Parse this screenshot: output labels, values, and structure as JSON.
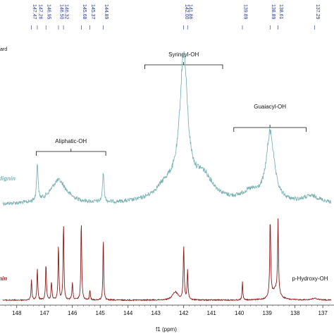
{
  "chart_data": {
    "type": "line",
    "title": "",
    "xlabel": "f1 (ppm)",
    "ylabel": "",
    "xlim": [
      148.5,
      136.7
    ],
    "x_reversed": true,
    "grid": false,
    "x_ticks": [
      148,
      147,
      146,
      145,
      144,
      143,
      142,
      141,
      140,
      139,
      138,
      137
    ],
    "corner_label": "ard",
    "peak_labels": [
      "147.47",
      "147.26",
      "146.95",
      "146.50",
      "146.32",
      "145.68",
      "145.37",
      "144.89",
      "142.00",
      "141.86",
      "139.89",
      "138.89",
      "138.61",
      "137.29"
    ],
    "peak_label_positions": [
      147.47,
      147.26,
      146.95,
      146.5,
      146.32,
      145.68,
      145.37,
      144.89,
      142.0,
      141.86,
      139.89,
      138.89,
      138.61,
      137.29
    ],
    "regions": [
      {
        "label": "Aliphatic-OH",
        "range": [
          147.3,
          144.8
        ]
      },
      {
        "label": "Syringyl-OH",
        "range": [
          143.4,
          140.6
        ]
      },
      {
        "label": "Guaiacyl-OH",
        "range": [
          140.2,
          137.6
        ]
      },
      {
        "label": "p-Hydroxy-OH",
        "range": [
          137.5,
          136.8
        ]
      }
    ],
    "series": [
      {
        "name": "dignin",
        "color": "#7fb3b3",
        "baseline": 0.05,
        "peaks": [
          {
            "x": 147.26,
            "h": 0.28,
            "w": 0.03
          },
          {
            "x": 146.5,
            "h": 0.17,
            "w": 0.35
          },
          {
            "x": 144.89,
            "h": 0.22,
            "w": 0.03
          },
          {
            "x": 142.0,
            "h": 1.0,
            "w": 0.17
          },
          {
            "x": 142.6,
            "h": 0.12,
            "w": 0.5
          },
          {
            "x": 141.3,
            "h": 0.18,
            "w": 0.45
          },
          {
            "x": 138.89,
            "h": 0.5,
            "w": 0.17
          },
          {
            "x": 139.6,
            "h": 0.07,
            "w": 0.4
          },
          {
            "x": 137.4,
            "h": 0.05,
            "w": 0.4
          }
        ]
      },
      {
        "name": "nin",
        "color": "#8b1a1a",
        "baseline": 0.0,
        "peaks": [
          {
            "x": 147.47,
            "h": 0.26,
            "w": 0.018
          },
          {
            "x": 147.26,
            "h": 0.38,
            "w": 0.018
          },
          {
            "x": 146.95,
            "h": 0.45,
            "w": 0.018
          },
          {
            "x": 146.75,
            "h": 0.22,
            "w": 0.02
          },
          {
            "x": 146.5,
            "h": 0.68,
            "w": 0.018
          },
          {
            "x": 146.32,
            "h": 0.95,
            "w": 0.018
          },
          {
            "x": 146.0,
            "h": 0.22,
            "w": 0.02
          },
          {
            "x": 145.68,
            "h": 1.0,
            "w": 0.018
          },
          {
            "x": 145.37,
            "h": 0.12,
            "w": 0.018
          },
          {
            "x": 144.89,
            "h": 0.82,
            "w": 0.015
          },
          {
            "x": 142.0,
            "h": 0.66,
            "w": 0.02
          },
          {
            "x": 141.86,
            "h": 0.35,
            "w": 0.02
          },
          {
            "x": 142.3,
            "h": 0.1,
            "w": 0.12
          },
          {
            "x": 139.89,
            "h": 0.24,
            "w": 0.015
          },
          {
            "x": 138.89,
            "h": 0.95,
            "w": 0.022
          },
          {
            "x": 138.61,
            "h": 0.9,
            "w": 0.02
          },
          {
            "x": 138.7,
            "h": 0.12,
            "w": 0.15
          },
          {
            "x": 137.29,
            "h": 0.02,
            "w": 0.15
          }
        ]
      }
    ]
  }
}
